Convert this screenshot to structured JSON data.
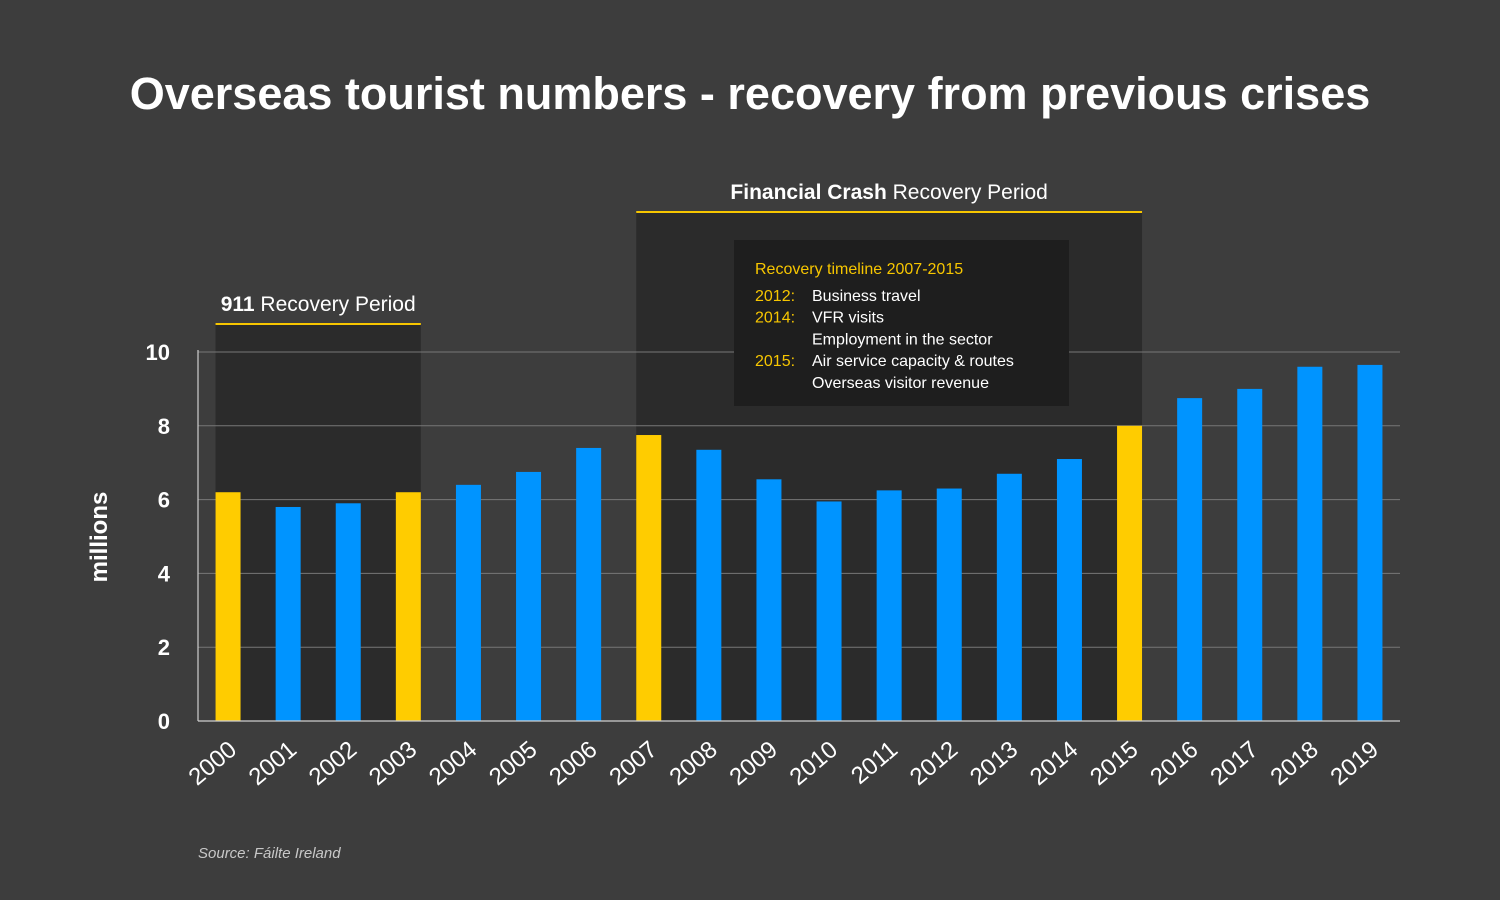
{
  "title": "Overseas tourist numbers - recovery from previous crises",
  "source": "Source: Fáilte Ireland",
  "colors": {
    "background": "#3d3d3d",
    "bar_default": "#0094ff",
    "bar_highlight": "#ffcc00",
    "accent_line": "#f7c600",
    "shade": "#2b2b2b",
    "info_box": "#1e1e1e",
    "grid": "#777777"
  },
  "periods": [
    {
      "bold": "911",
      "rest": " Recovery Period",
      "start": "2000",
      "end": "2003"
    },
    {
      "bold": "Financial Crash",
      "rest": " Recovery Period",
      "start": "2007",
      "end": "2015"
    }
  ],
  "info_box": {
    "title": "Recovery timeline 2007-2015",
    "rows": [
      {
        "year": "2012:",
        "text": "Business travel"
      },
      {
        "year": "2014:",
        "text": "VFR visits"
      },
      {
        "year": "",
        "text": "Employment in the sector"
      },
      {
        "year": "2015:",
        "text": "Air service capacity & routes"
      },
      {
        "year": "",
        "text": "Overseas visitor revenue"
      }
    ]
  },
  "chart_data": {
    "type": "bar",
    "title": "Overseas tourist numbers - recovery from previous crises",
    "xlabel": "",
    "ylabel": "millions",
    "ylim": [
      0,
      10
    ],
    "yticks": [
      0,
      2,
      4,
      6,
      8,
      10
    ],
    "grid": true,
    "categories": [
      "2000",
      "2001",
      "2002",
      "2003",
      "2004",
      "2005",
      "2006",
      "2007",
      "2008",
      "2009",
      "2010",
      "2011",
      "2012",
      "2013",
      "2014",
      "2015",
      "2016",
      "2017",
      "2018",
      "2019"
    ],
    "values": [
      6.2,
      5.8,
      5.9,
      6.2,
      6.4,
      6.75,
      7.4,
      7.75,
      7.35,
      6.55,
      5.95,
      6.25,
      6.3,
      6.7,
      7.1,
      8.0,
      8.75,
      9.0,
      9.6,
      9.65
    ],
    "highlighted": [
      "2000",
      "2003",
      "2007",
      "2015"
    ]
  }
}
